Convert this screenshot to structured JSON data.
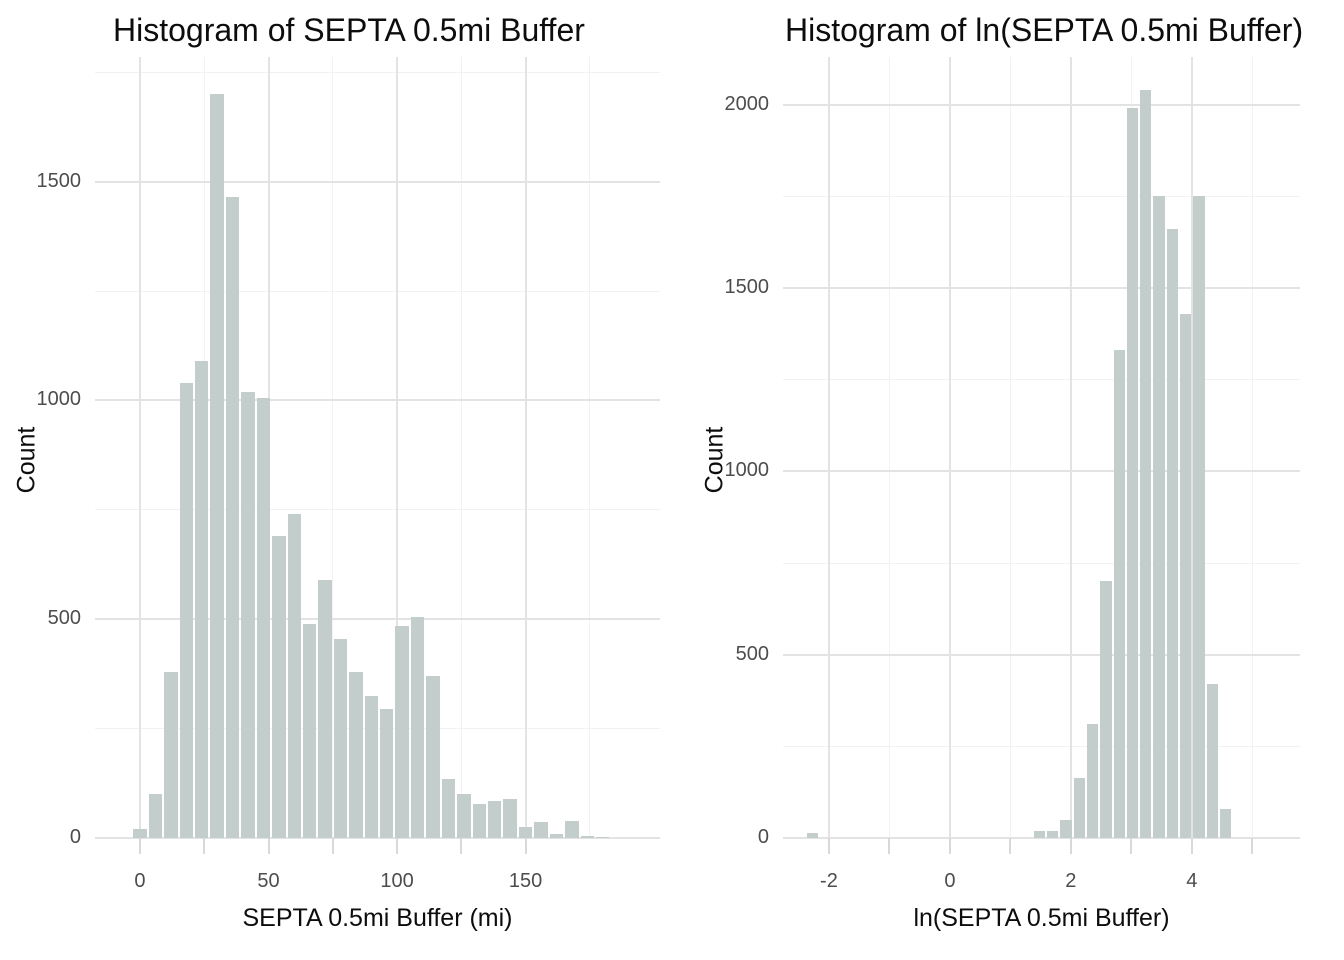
{
  "figure": {
    "background": "#ffffff",
    "colors": {
      "bar_fill": "#c3cdcc",
      "bar_gap": "#ffffff",
      "grid_major": "#e3e3e3",
      "grid_minor": "#f2f2f2",
      "tick_mark": "#d9d9d9",
      "tick_label": "#4d4d4d",
      "text": "#0d0d0d"
    }
  },
  "chart_data": [
    {
      "type": "bar",
      "variant": "histogram",
      "title": "Histogram of SEPTA 0.5mi Buffer",
      "xlabel": "SEPTA 0.5mi Buffer (mi)",
      "ylabel": "Count",
      "legend": false,
      "grid": true,
      "bin_width": 6,
      "bin_centers": [
        0,
        6,
        12,
        18,
        24,
        30,
        36,
        42,
        48,
        54,
        60,
        66,
        72,
        78,
        84,
        90,
        96,
        102,
        108,
        114,
        120,
        126,
        132,
        138,
        144,
        150,
        156,
        162,
        168,
        174,
        180
      ],
      "counts": [
        20,
        100,
        380,
        1040,
        1090,
        1700,
        1465,
        1020,
        1005,
        690,
        740,
        490,
        590,
        455,
        380,
        325,
        295,
        485,
        505,
        370,
        135,
        100,
        78,
        85,
        88,
        24,
        37,
        9,
        39,
        5,
        2
      ],
      "xlim": [
        -17.5,
        202.3
      ],
      "ylim": [
        0,
        1785
      ],
      "x_axis": {
        "tick_labels": [
          "0",
          "50",
          "100",
          "150"
        ],
        "tick_label_values": [
          0,
          50,
          100,
          150
        ],
        "major_gridlines": [
          0,
          50,
          100,
          150
        ],
        "minor_gridlines": [
          25,
          75,
          125,
          175
        ],
        "tick_marks": [
          0,
          25,
          50,
          75,
          100,
          125,
          150
        ]
      },
      "y_axis": {
        "tick_labels": [
          "0",
          "500",
          "1000",
          "1500"
        ],
        "tick_label_values": [
          0,
          500,
          1000,
          1500
        ],
        "major_gridlines": [
          0,
          500,
          1000,
          1500
        ],
        "minor_gridlines": [
          250,
          750,
          1250,
          1750
        ]
      }
    },
    {
      "type": "bar",
      "variant": "histogram",
      "title": "Histogram of ln(SEPTA 0.5mi Buffer)",
      "xlabel": "ln(SEPTA 0.5mi Buffer)",
      "ylabel": "Count",
      "legend": false,
      "grid": true,
      "bin_width": 0.22,
      "bin_centers": [
        -2.27,
        1.48,
        1.7,
        1.92,
        2.14,
        2.36,
        2.58,
        2.8,
        3.02,
        3.24,
        3.46,
        3.68,
        3.9,
        4.12,
        4.34,
        4.56
      ],
      "counts": [
        15,
        20,
        18,
        50,
        165,
        310,
        700,
        1330,
        1990,
        2040,
        1750,
        1660,
        1430,
        1750,
        420,
        80
      ],
      "xlim": [
        -2.76,
        5.79
      ],
      "ylim": [
        0,
        2130
      ],
      "x_axis": {
        "tick_labels": [
          "-2",
          "0",
          "2",
          "4"
        ],
        "tick_label_values": [
          -2,
          0,
          2,
          4
        ],
        "major_gridlines": [
          -2,
          0,
          2,
          4
        ],
        "minor_gridlines": [
          -1,
          1,
          3,
          5
        ],
        "tick_marks": [
          -2,
          -1,
          0,
          1,
          2,
          3,
          4,
          5
        ]
      },
      "y_axis": {
        "tick_labels": [
          "0",
          "500",
          "1000",
          "1500",
          "2000"
        ],
        "tick_label_values": [
          0,
          500,
          1000,
          1500,
          2000
        ],
        "major_gridlines": [
          0,
          500,
          1000,
          1500,
          2000
        ],
        "minor_gridlines": [
          250,
          750,
          1250,
          1750
        ]
      }
    }
  ]
}
